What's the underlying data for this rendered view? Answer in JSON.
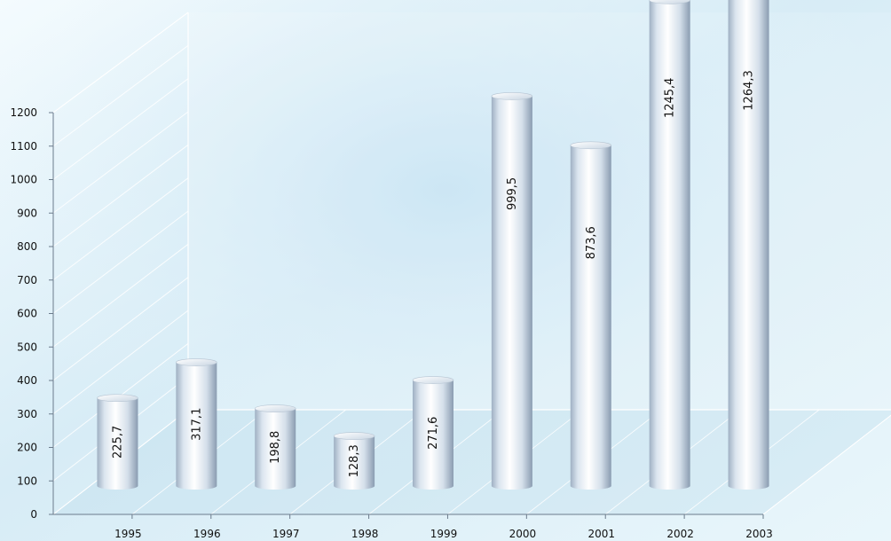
{
  "chart_data": {
    "type": "bar",
    "categories": [
      "1995",
      "1996",
      "1997",
      "1998",
      "1999",
      "2000",
      "2001",
      "2002",
      "2003"
    ],
    "values": [
      225.7,
      317.1,
      198.8,
      128.3,
      271.6,
      999.5,
      873.6,
      1245.4,
      1264.3
    ],
    "data_labels": [
      "225,7",
      "317,1",
      "198,8",
      "128,3",
      "271,6",
      "999,5",
      "873,6",
      "1245,4",
      "1264,3"
    ],
    "y_ticks": [
      "0",
      "100",
      "200",
      "300",
      "400",
      "500",
      "600",
      "700",
      "800",
      "900",
      "1000",
      "1100",
      "1200"
    ],
    "ylim": [
      0,
      1200
    ],
    "grid": true,
    "legend": "none",
    "style": "3d-cylinder",
    "colors": {
      "background_light": "#eef8fd",
      "background_mid": "#cfe8f4",
      "bar_light": "#ffffff",
      "bar_mid": "#dce7f1",
      "bar_dark": "#8fa1b6",
      "gridline": "#ffffff",
      "axis": "#6b7b8c",
      "text": "#111111"
    }
  }
}
